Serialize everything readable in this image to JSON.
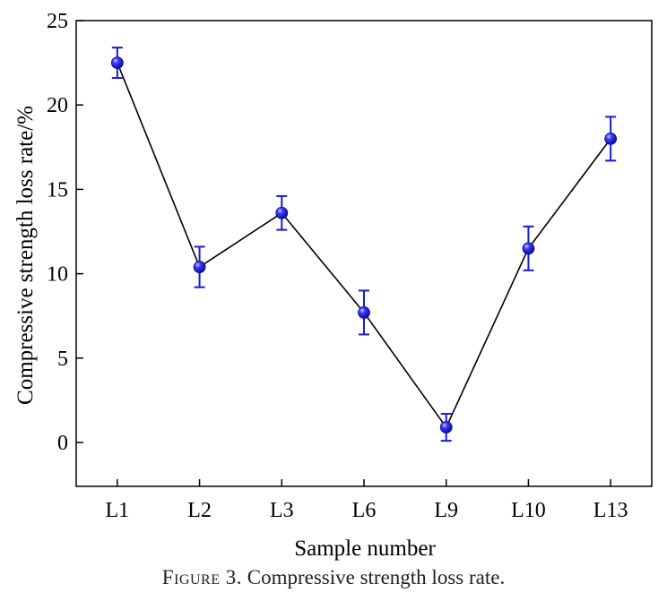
{
  "chart_data": {
    "type": "line",
    "categories": [
      "L1",
      "L2",
      "L3",
      "L6",
      "L9",
      "L10",
      "L13"
    ],
    "series": [
      {
        "values": [
          22.5,
          10.4,
          13.6,
          7.7,
          0.9,
          11.5,
          18.0
        ],
        "error": [
          0.9,
          1.2,
          1.0,
          1.3,
          0.8,
          1.3,
          1.3
        ]
      }
    ],
    "title": "",
    "xlabel": "Sample number",
    "ylabel": "Compressive strength loss rate/%",
    "ylim": [
      -2.6,
      25
    ],
    "yticks": [
      0,
      5,
      10,
      15,
      20,
      25
    ],
    "grid": false,
    "colors": {
      "marker": "#1515e6",
      "line": "#000000",
      "errorbar": "#1a1ad6"
    }
  },
  "caption": {
    "figure_label": "Figure 3.",
    "text": "Compressive strength loss rate."
  }
}
